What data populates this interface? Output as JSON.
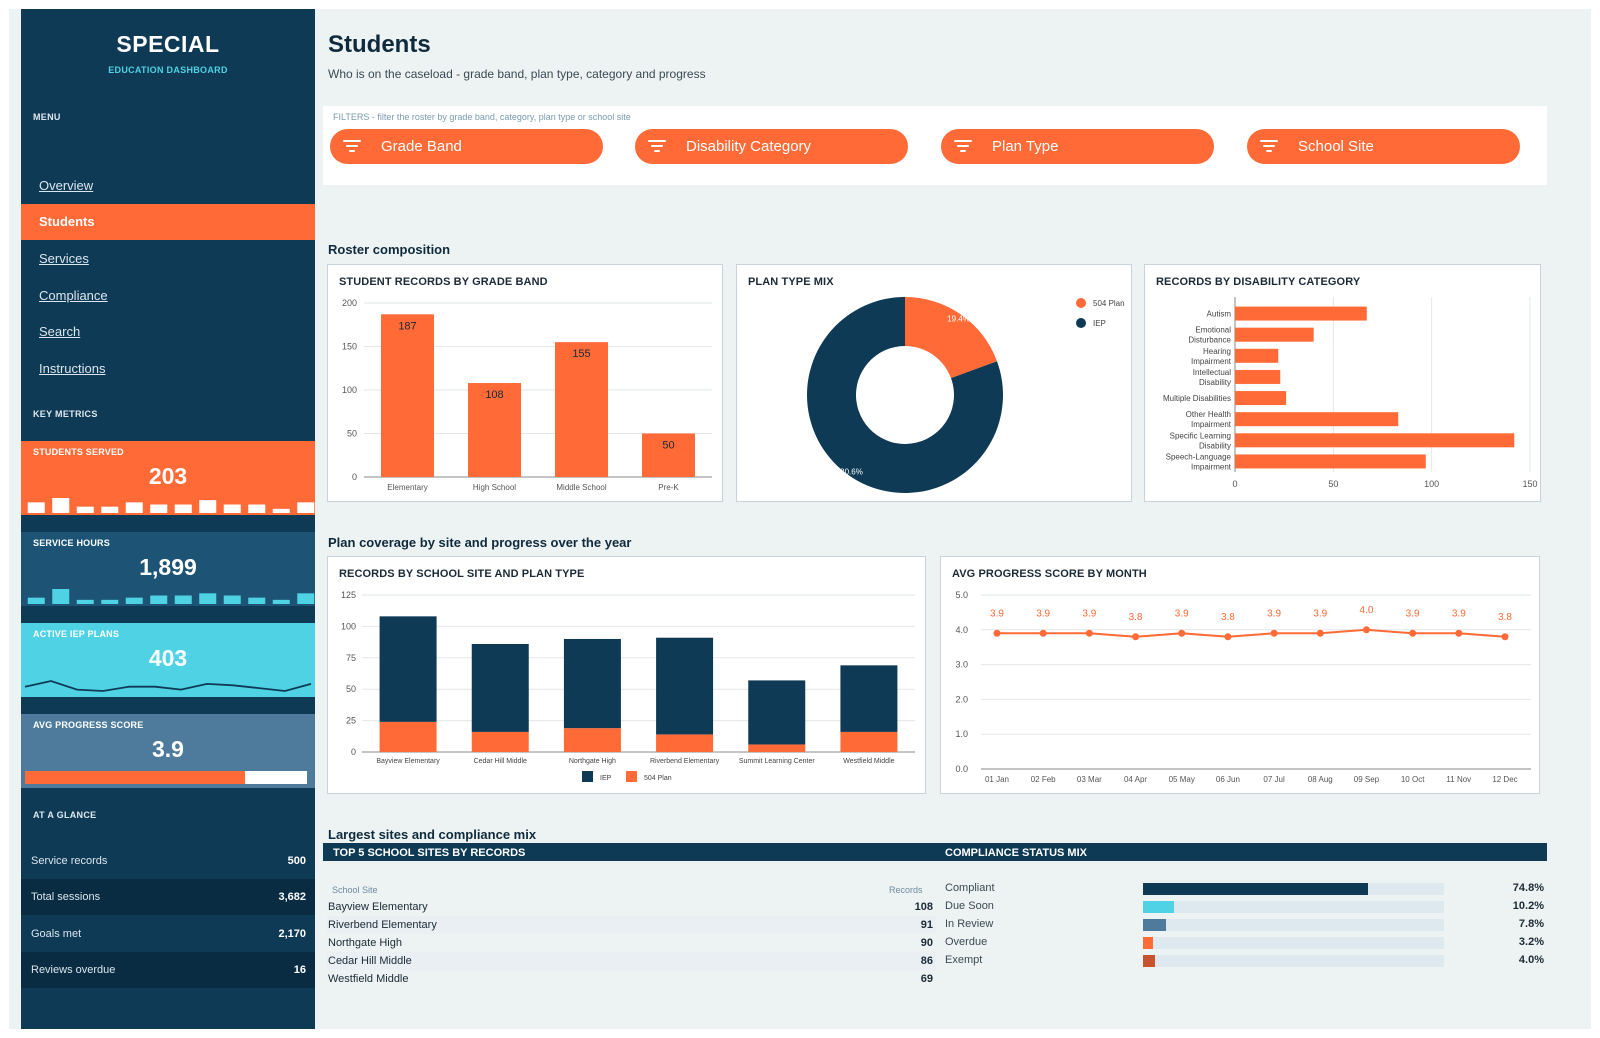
{
  "brand": {
    "title": "SPECIAL",
    "subtitle": "EDUCATION DASHBOARD"
  },
  "menu": {
    "label": "MENU",
    "items": [
      {
        "label": "Overview",
        "active": false
      },
      {
        "label": "Students",
        "active": true
      },
      {
        "label": "Services",
        "active": false
      },
      {
        "label": "Compliance",
        "active": false
      },
      {
        "label": "Search",
        "active": false
      },
      {
        "label": "Instructions",
        "active": false
      }
    ]
  },
  "key_metrics": {
    "label": "KEY METRICS",
    "items": [
      {
        "label": "STUDENTS SERVED",
        "value": "203",
        "bg": "#ff6a36",
        "spark": "bars",
        "spark_color": "#ffffff",
        "bars": [
          4,
          6,
          2,
          2,
          4,
          3,
          3,
          5,
          3,
          3,
          1,
          4
        ]
      },
      {
        "label": "SERVICE HOURS",
        "value": "1,899",
        "bg": "#1d5475",
        "spark": "bars",
        "spark_color": "#4fd2e3",
        "bars": [
          2,
          6,
          1,
          1,
          2,
          3,
          3,
          4,
          3,
          2,
          1,
          4
        ]
      },
      {
        "label": "ACTIVE IEP PLANS",
        "value": "403",
        "bg": "#4fd2e3",
        "spark": "line",
        "spark_color": "#0e3a55",
        "line": [
          3,
          7,
          1,
          0,
          3,
          3,
          1,
          5,
          4,
          2,
          0,
          5
        ]
      },
      {
        "label": "AVG PROGRESS SCORE",
        "value": "3.9",
        "bg": "#4e7b9b",
        "spark": "progress",
        "spark_color": "#ff6a36",
        "progress": 0.78
      }
    ]
  },
  "at_a_glance": {
    "label": "AT A GLANCE",
    "rows": [
      {
        "label": "Service records",
        "value": "500"
      },
      {
        "label": "Total sessions",
        "value": "3,682"
      },
      {
        "label": "Goals met",
        "value": "2,170"
      },
      {
        "label": "Reviews overdue",
        "value": "16"
      }
    ]
  },
  "page": {
    "title": "Students",
    "subtitle": "Who is on the caseload - grade band, plan type, category and progress"
  },
  "filters": {
    "label": "FILTERS  -  filter the roster by grade band, category, plan type or school site",
    "buttons": [
      "Grade Band",
      "Disability Category",
      "Plan Type",
      "School Site"
    ],
    "icon": "filter-icon"
  },
  "sections": {
    "roster": "Roster composition",
    "coverage": "Plan coverage by site and progress over the year",
    "largest": "Largest sites and compliance mix"
  },
  "colors": {
    "orange": "#ff6a36",
    "navy": "#0e3a55",
    "cyan": "#4fd2e3",
    "steel": "#4e7b9b",
    "rust": "#c8532f"
  },
  "chart_data": [
    {
      "id": "grade_band",
      "type": "bar",
      "title": "STUDENT RECORDS BY GRADE BAND",
      "categories": [
        "Elementary",
        "High School",
        "Middle School",
        "Pre-K"
      ],
      "values": [
        187,
        108,
        155,
        50
      ],
      "ylim": [
        0,
        200
      ],
      "yticks": [
        0,
        50,
        100,
        150,
        200
      ],
      "data_labels": true,
      "grid": true
    },
    {
      "id": "plan_type",
      "type": "pie",
      "title": "PLAN TYPE MIX",
      "labels": [
        "504 Plan",
        "IEP"
      ],
      "values": [
        19.4,
        80.6
      ],
      "value_labels": [
        "19.4%",
        "80.6%"
      ],
      "donut": true,
      "legend": "top-right"
    },
    {
      "id": "disability",
      "type": "bar",
      "orientation": "horizontal",
      "title": "RECORDS BY DISABILITY CATEGORY",
      "categories": [
        "Autism",
        "Emotional Disturbance",
        "Hearing Impairment",
        "Intellectual Disability",
        "Multiple Disabilities",
        "Other Health Impairment",
        "Specific Learning Disability",
        "Speech-Language Impairment"
      ],
      "values": [
        67,
        40,
        22,
        23,
        26,
        83,
        142,
        97
      ],
      "xlim": [
        0,
        150
      ],
      "xticks": [
        0,
        50,
        100,
        150
      ],
      "grid": true
    },
    {
      "id": "site_plan",
      "type": "bar",
      "stacked": true,
      "title": "RECORDS BY SCHOOL SITE AND PLAN TYPE",
      "categories": [
        "Bayview Elementary",
        "Cedar Hill Middle",
        "Northgate High",
        "Riverbend Elementary",
        "Summit Learning Center",
        "Westfield Middle"
      ],
      "series": [
        {
          "name": "IEP",
          "values": [
            84,
            70,
            71,
            77,
            51,
            53
          ]
        },
        {
          "name": "504 Plan",
          "values": [
            24,
            16,
            19,
            14,
            6,
            16
          ]
        }
      ],
      "ylim": [
        0,
        125
      ],
      "yticks": [
        0,
        25,
        50,
        75,
        100,
        125
      ],
      "legend": "bottom",
      "grid": true
    },
    {
      "id": "progress",
      "type": "line",
      "title": "AVG PROGRESS SCORE BY MONTH",
      "x": [
        "01 Jan",
        "02 Feb",
        "03 Mar",
        "04 Apr",
        "05 May",
        "06 Jun",
        "07 Jul",
        "08 Aug",
        "09 Sep",
        "10 Oct",
        "11 Nov",
        "12 Dec"
      ],
      "y": [
        3.9,
        3.9,
        3.9,
        3.8,
        3.9,
        3.8,
        3.9,
        3.9,
        4.0,
        3.9,
        3.9,
        3.8
      ],
      "ylim": [
        0,
        5
      ],
      "yticks": [
        "0.0",
        "1.0",
        "2.0",
        "3.0",
        "4.0",
        "5.0"
      ],
      "data_labels": true,
      "grid": true
    }
  ],
  "top_sites": {
    "title": "TOP 5 SCHOOL SITES BY RECORDS",
    "col_site": "School Site",
    "col_records": "Records",
    "rows": [
      {
        "site": "Bayview Elementary",
        "records": "108"
      },
      {
        "site": "Riverbend Elementary",
        "records": "91"
      },
      {
        "site": "Northgate High",
        "records": "90"
      },
      {
        "site": "Cedar Hill Middle",
        "records": "86"
      },
      {
        "site": "Westfield Middle",
        "records": "69"
      }
    ]
  },
  "compliance": {
    "title": "COMPLIANCE STATUS MIX",
    "rows": [
      {
        "label": "Compliant",
        "pct": "74.8%",
        "fraction": 0.748,
        "color": "#0e3a55"
      },
      {
        "label": "Due Soon",
        "pct": "10.2%",
        "fraction": 0.102,
        "color": "#4fd2e3"
      },
      {
        "label": "In Review",
        "pct": "7.8%",
        "fraction": 0.078,
        "color": "#4e7b9b"
      },
      {
        "label": "Overdue",
        "pct": "3.2%",
        "fraction": 0.032,
        "color": "#ff6a36"
      },
      {
        "label": "Exempt",
        "pct": "4.0%",
        "fraction": 0.04,
        "color": "#c8532f"
      }
    ]
  }
}
